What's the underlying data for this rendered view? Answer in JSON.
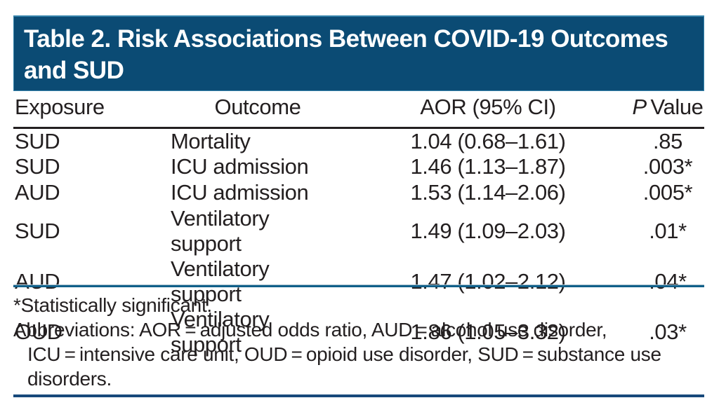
{
  "colors": {
    "band_blue": "#0b4b74",
    "band_border": "#3683ab",
    "text_black": "#231f20",
    "rule_black": "#231f20",
    "rule_teal_dark": "#11608a",
    "rule_teal_light": "#a9c0cd",
    "rule_navy": "#17497b",
    "title_text": "#ffffff",
    "background": "#ffffff"
  },
  "title": {
    "full": "Table 2. Risk Associations Between COVID-19 Outcomes and SUD",
    "lines": [
      "Table 2. Risk Associations Between COVID-19 Outcomes",
      "and SUD"
    ]
  },
  "table": {
    "columns": [
      "Exposure",
      "Outcome",
      "AOR (95% CI)",
      "P Value"
    ],
    "p_header": {
      "italic": "P",
      "rest": " Value"
    },
    "rows": [
      {
        "exposure": "SUD",
        "outcome": "Mortality",
        "aor_ci": "1.04 (0.68–1.61)",
        "p_value": ".85"
      },
      {
        "exposure": "SUD",
        "outcome": "ICU admission",
        "aor_ci": "1.46 (1.13–1.87)",
        "p_value": ".003*"
      },
      {
        "exposure": "AUD",
        "outcome": "ICU admission",
        "aor_ci": "1.53 (1.14–2.06)",
        "p_value": ".005*"
      },
      {
        "exposure": "SUD",
        "outcome": "Ventilatory support",
        "aor_ci": "1.49 (1.09–2.03)",
        "p_value": ".01*"
      },
      {
        "exposure": "AUD",
        "outcome": "Ventilatory support",
        "aor_ci": "1.47 (1.02–2.12)",
        "p_value": ".04*"
      },
      {
        "exposure": "OUD",
        "outcome": "Ventilatory support",
        "aor_ci": "1.86 (1.05–3.32)",
        "p_value": ".03*"
      }
    ]
  },
  "footnotes": {
    "significance": "*Statistically significant.",
    "abbreviations_full": "Abbreviations: AOR = adjusted odds ratio, AUD = alcohol use disorder, ICU = intensive care unit, OUD = opioid use disorder, SUD = substance use disorders.",
    "abbrev_lines": [
      "Abbreviations: AOR = adjusted odds ratio, AUD = alcohol use disorder,",
      "ICU = intensive care unit, OUD = opioid use disorder, SUD = substance use",
      "disorders."
    ]
  }
}
